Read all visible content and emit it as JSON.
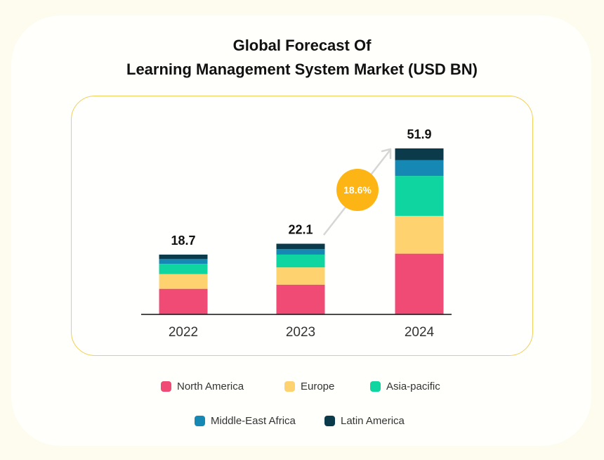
{
  "colors": {
    "north_america": "#ef4b74",
    "europe": "#fed36f",
    "asia_pacific": "#0fd6a1",
    "middle_east_africa": "#1589b3",
    "latin_america": "#0b3b4b",
    "cagr_badge": "#fdb515",
    "arrow": "#d6d6d6"
  },
  "chart_data": {
    "type": "bar",
    "stacked": true,
    "title": "Global Forecast Of Learning Management System Market (USD BN)",
    "title_lines": [
      "Global Forecast Of",
      "Learning Management System Market (USD BN)"
    ],
    "categories": [
      "2022",
      "2023",
      "2024"
    ],
    "totals": [
      "18.7",
      "22.1",
      "51.9"
    ],
    "ylim": [
      0,
      51.9
    ],
    "grid": false,
    "legend_position": "bottom",
    "series": [
      {
        "name": "North America",
        "color": "#ef4b74",
        "values": [
          8.0,
          9.3,
          19.0
        ]
      },
      {
        "name": "Europe",
        "color": "#fed36f",
        "values": [
          4.6,
          5.4,
          11.8
        ]
      },
      {
        "name": "Asia-pacific",
        "color": "#0fd6a1",
        "values": [
          3.2,
          4.0,
          12.5
        ]
      },
      {
        "name": "Middle-East Africa",
        "color": "#1589b3",
        "values": [
          1.5,
          1.7,
          4.9
        ]
      },
      {
        "name": "Latin America",
        "color": "#0b3b4b",
        "values": [
          1.4,
          1.7,
          3.7
        ]
      }
    ],
    "annotation": "18.6%"
  }
}
